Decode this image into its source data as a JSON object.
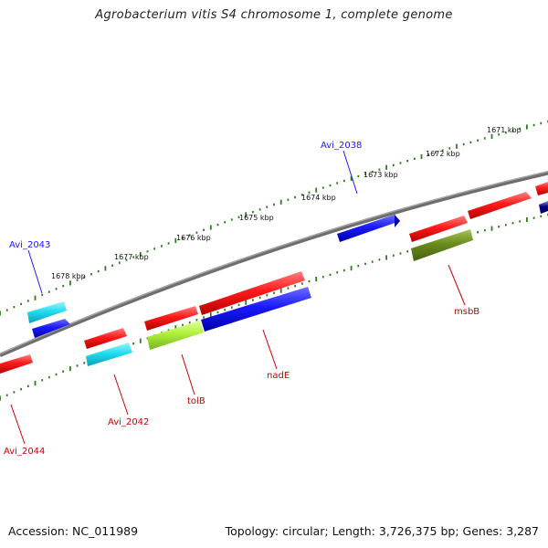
{
  "title": "Agrobacterium vitis S4 chromosome 1, complete genome",
  "footer": {
    "accession": "Accession: NC_011989",
    "summary": "Topology: circular; Length: 3,726,375 bp; Genes: 3,287"
  },
  "scale_labels": [
    "1671 kbp",
    "1672 kbp",
    "1673 kbp",
    "1674 kbp",
    "1675 kbp",
    "1676 kbp",
    "1677 kbp",
    "1678 kbp"
  ],
  "gene_labels": {
    "Avi_2038": "Avi_2038",
    "Avi_2043": "Avi_2043",
    "msbB": "msbB",
    "nadE": "nadE",
    "tolB": "tolB",
    "Avi_2042": "Avi_2042",
    "Avi_2044": "Avi_2044"
  },
  "colors": {
    "backbone": "#808080",
    "tick": "#2e7d1f",
    "red": "#ff1a1a",
    "blue": "#1a1aff",
    "cyan": "#22ddee",
    "lime": "#aef03c",
    "olive": "#6b8c1e",
    "navy": "#000080",
    "label_blue": "#1a1aff",
    "label_red": "#cc0000"
  }
}
